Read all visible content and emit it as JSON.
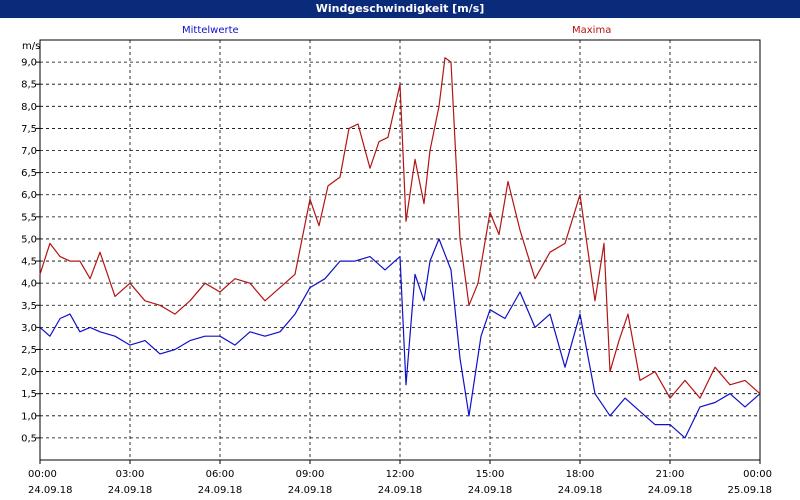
{
  "chart_data": {
    "type": "line",
    "title": "Windgeschwindigkeit [m/s]",
    "ylabel": "m/s",
    "ylim": [
      0,
      9.5
    ],
    "yticks": [
      "0,5",
      "1,0",
      "1,5",
      "2,0",
      "2,5",
      "3,0",
      "3,5",
      "4,0",
      "4,5",
      "5,0",
      "5,5",
      "6,0",
      "6,5",
      "7,0",
      "7,5",
      "8,0",
      "8,5",
      "9,0"
    ],
    "xlim": [
      0,
      24
    ],
    "xticks": [
      {
        "time": "00:00",
        "date": "24.09.18"
      },
      {
        "time": "03:00",
        "date": "24.09.18"
      },
      {
        "time": "06:00",
        "date": "24.09.18"
      },
      {
        "time": "09:00",
        "date": "24.09.18"
      },
      {
        "time": "12:00",
        "date": "24.09.18"
      },
      {
        "time": "15:00",
        "date": "24.09.18"
      },
      {
        "time": "18:00",
        "date": "24.09.18"
      },
      {
        "time": "21:00",
        "date": "24.09.18"
      },
      {
        "time": "00:00",
        "date": "25.09.18"
      }
    ],
    "grid": true,
    "series": [
      {
        "name": "Mittelwerte",
        "color": "#1010c8",
        "x": [
          0,
          0.33,
          0.67,
          1,
          1.33,
          1.67,
          2,
          2.5,
          3,
          3.5,
          4,
          4.5,
          5,
          5.5,
          6,
          6.5,
          7,
          7.5,
          8,
          8.5,
          9,
          9.5,
          10,
          10.5,
          11,
          11.5,
          12,
          12.2,
          12.5,
          12.8,
          13,
          13.3,
          13.7,
          14,
          14.3,
          14.7,
          15,
          15.5,
          16,
          16.5,
          17,
          17.5,
          18,
          18.5,
          19,
          19.5,
          20,
          20.5,
          21,
          21.5,
          22,
          22.5,
          23,
          23.5,
          24
        ],
        "values": [
          3.0,
          2.8,
          3.2,
          3.3,
          2.9,
          3.0,
          2.9,
          2.8,
          2.6,
          2.7,
          2.4,
          2.5,
          2.7,
          2.8,
          2.8,
          2.6,
          2.9,
          2.8,
          2.9,
          3.3,
          3.9,
          4.1,
          4.5,
          4.5,
          4.6,
          4.3,
          4.6,
          1.7,
          4.2,
          3.6,
          4.5,
          5.0,
          4.3,
          2.3,
          1.0,
          2.8,
          3.4,
          3.2,
          3.8,
          3.0,
          3.3,
          2.1,
          3.3,
          1.5,
          1.0,
          1.4,
          1.1,
          0.8,
          0.8,
          0.5,
          1.2,
          1.3,
          1.5,
          1.2,
          1.5
        ]
      },
      {
        "name": "Maxima",
        "color": "#b41414",
        "x": [
          0,
          0.33,
          0.67,
          1,
          1.33,
          1.67,
          2,
          2.5,
          3,
          3.5,
          4,
          4.5,
          5,
          5.5,
          6,
          6.5,
          7,
          7.5,
          8,
          8.5,
          9,
          9.3,
          9.6,
          10,
          10.3,
          10.6,
          11,
          11.3,
          11.6,
          12,
          12.2,
          12.5,
          12.8,
          13,
          13.3,
          13.5,
          13.7,
          14,
          14.3,
          14.6,
          15,
          15.3,
          15.6,
          16,
          16.5,
          17,
          17.5,
          18,
          18.5,
          18.8,
          19,
          19.3,
          19.6,
          20,
          20.5,
          21,
          21.5,
          22,
          22.5,
          23,
          23.5,
          24
        ],
        "values": [
          4.2,
          4.9,
          4.6,
          4.5,
          4.5,
          4.1,
          4.7,
          3.7,
          4.0,
          3.6,
          3.5,
          3.3,
          3.6,
          4.0,
          3.8,
          4.1,
          4.0,
          3.6,
          3.9,
          4.2,
          5.9,
          5.3,
          6.2,
          6.4,
          7.5,
          7.6,
          6.6,
          7.2,
          7.3,
          8.5,
          5.4,
          6.8,
          5.8,
          7.0,
          8.0,
          9.1,
          9.0,
          5.0,
          3.5,
          4.0,
          5.6,
          5.1,
          6.3,
          5.2,
          4.1,
          4.7,
          4.9,
          6.0,
          3.6,
          4.9,
          2.0,
          2.7,
          3.3,
          1.8,
          2.0,
          1.4,
          1.8,
          1.4,
          2.1,
          1.7,
          1.8,
          1.5
        ]
      }
    ]
  }
}
